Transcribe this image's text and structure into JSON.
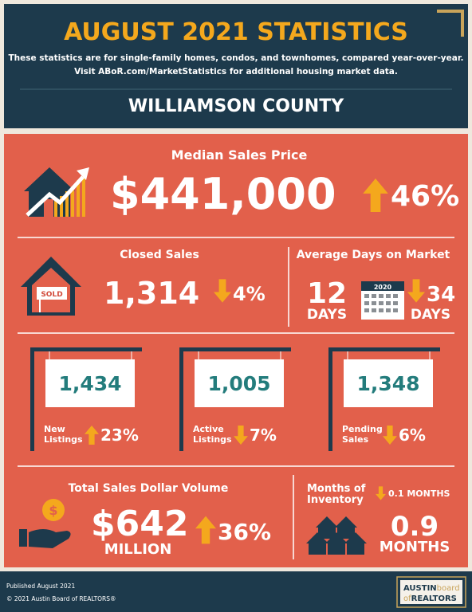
{
  "header": {
    "title": "AUGUST 2021 STATISTICS",
    "subtitle": [
      "These statistics are for single-family homes, condos, and townhomes, compared year-over-year.",
      "Visit ABoR.com/MarketStatistics for additional housing market data."
    ],
    "county": "WILLIAMSON COUNTY"
  },
  "median_price": {
    "label": "Median Sales Price",
    "value": "$441,000",
    "change": "46%"
  },
  "closed_sales": {
    "label": "Closed Sales",
    "sign": "SOLD",
    "value": "1,314",
    "change": "4%"
  },
  "days_on_market": {
    "label": "Average Days on Market",
    "value": "12",
    "unit": "DAYS",
    "calendar": "2020",
    "change": "34",
    "change_unit": "DAYS"
  },
  "listings": [
    {
      "value": "1,434",
      "label": [
        "New",
        "Listings"
      ],
      "change": "23%"
    },
    {
      "value": "1,005",
      "label": [
        "Active",
        "Listings"
      ],
      "change": "7%"
    },
    {
      "value": "1,348",
      "label": [
        "Pending",
        "Sales"
      ],
      "change": "6%"
    }
  ],
  "volume": {
    "label": "Total Sales Dollar Volume",
    "value": "$642",
    "unit": "MILLION",
    "change": "36%"
  },
  "inventory": {
    "label": [
      "Months of",
      "Inventory"
    ],
    "change": "0.1 MONTHS",
    "value": "0.9",
    "unit": "MONTHS"
  },
  "footer": {
    "published": "Published August 2021",
    "copyright": "© 2021 Austin Board of REALTORS®",
    "logo": [
      "AUSTIN",
      "board",
      "of",
      "REALTORS"
    ]
  }
}
